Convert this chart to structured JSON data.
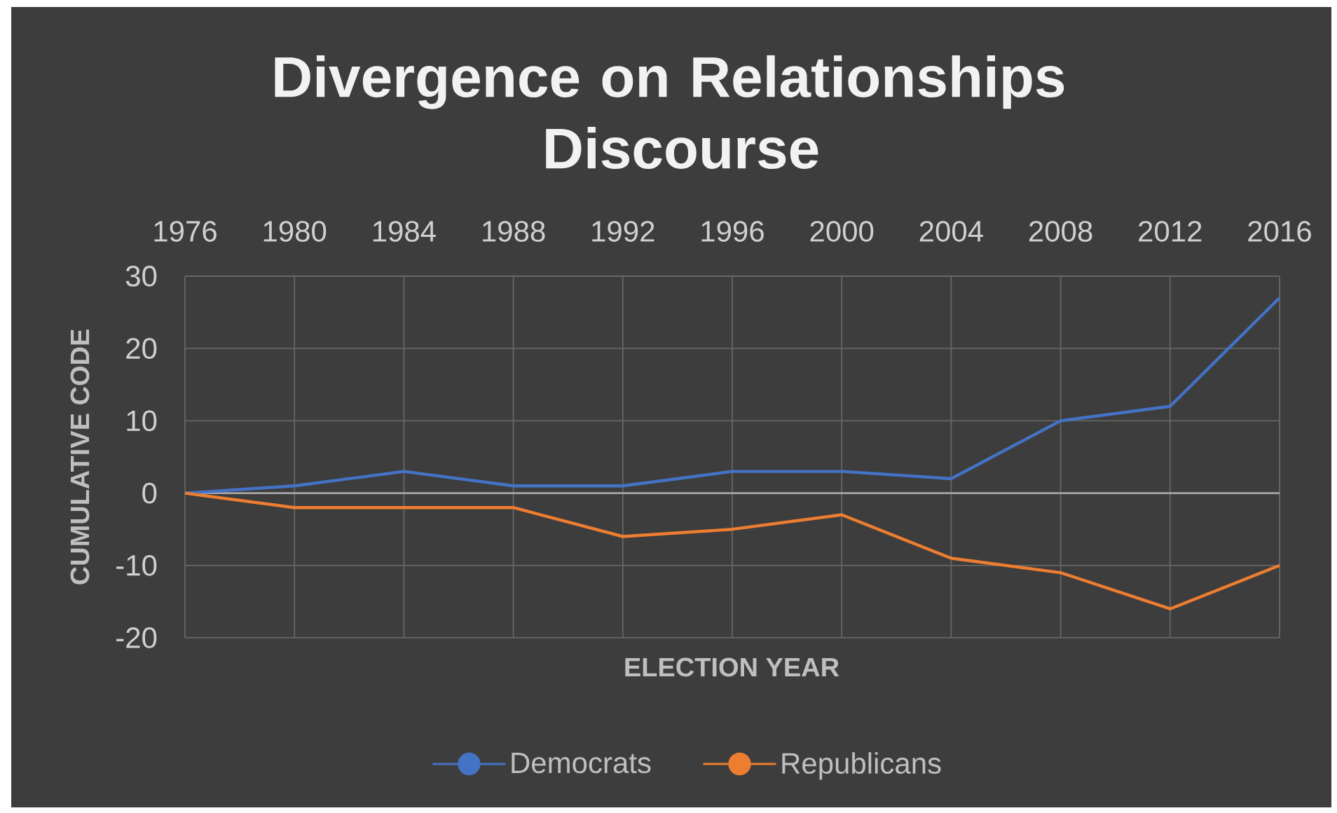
{
  "chart_data": {
    "type": "line",
    "title": "Divergence on Relationships Discourse",
    "xlabel": "ELECTION YEAR",
    "ylabel": "CUMULATIVE CODE",
    "categories": [
      "1976",
      "1980",
      "1984",
      "1988",
      "1992",
      "1996",
      "2000",
      "2004",
      "2008",
      "2012",
      "2016"
    ],
    "series": [
      {
        "name": "Democrats",
        "color": "#4472c4",
        "values": [
          0,
          1,
          3,
          1,
          1,
          3,
          3,
          2,
          10,
          12,
          27
        ]
      },
      {
        "name": "Republicans",
        "color": "#ed7d31",
        "values": [
          0,
          -2,
          -2,
          -2,
          -6,
          -5,
          -3,
          -9,
          -11,
          -16,
          -10
        ]
      }
    ],
    "ylim": [
      -20,
      30
    ],
    "yticks": [
      -20,
      -10,
      0,
      10,
      20,
      30
    ],
    "grid": true,
    "legend": "bottom",
    "line_style": "solid"
  }
}
